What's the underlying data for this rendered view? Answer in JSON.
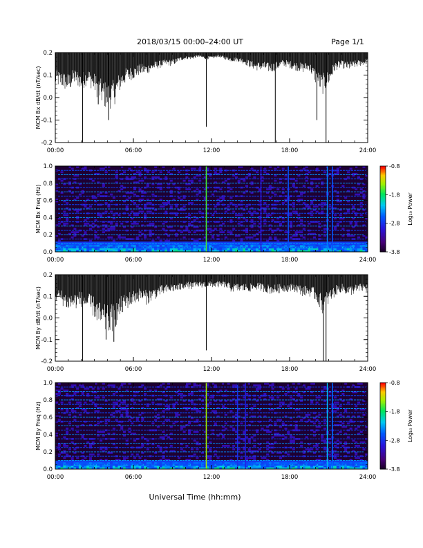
{
  "header": {
    "title": "2018/03/15  00:00–24:00 UT",
    "page": "Page 1/1"
  },
  "xlabel": "Universal Time (hh:mm)",
  "chart_data": [
    {
      "type": "line",
      "ylabel": "MCM Bx dB/dt (nT/sec)",
      "x_ticks": [
        "00:00",
        "06:00",
        "12:00",
        "18:00",
        "24:00"
      ],
      "y_ticks": [
        "0.2",
        "0.1",
        "0.0",
        "-0.1",
        "-0.2"
      ],
      "xlim": [
        0,
        24
      ],
      "ylim": [
        -0.2,
        0.2
      ],
      "x_unit": "hours UT",
      "series": [
        {
          "x": [
            0,
            0.5,
            1,
            1.5,
            2,
            2.5,
            3,
            3.5,
            4,
            4.5,
            5,
            5.5,
            6,
            6.5,
            7,
            7.5,
            8,
            8.5,
            9,
            9.5,
            10,
            10.5,
            11,
            11.5,
            12,
            12.5,
            13,
            13.5,
            14,
            14.5,
            15,
            15.5,
            16,
            16.5,
            17,
            17.5,
            18,
            18.5,
            19,
            19.5,
            20,
            20.5,
            21,
            21.5,
            22,
            22.5,
            23,
            23.5,
            24
          ],
          "upper": [
            0.2,
            0.2,
            0.2,
            0.2,
            0.2,
            0.2,
            0.2,
            0.2,
            0.2,
            0.2,
            0.2,
            0.2,
            0.2,
            0.2,
            0.2,
            0.2,
            0.2,
            0.2,
            0.2,
            0.2,
            0.2,
            0.2,
            0.2,
            0.2,
            0.2,
            0.2,
            0.2,
            0.2,
            0.2,
            0.2,
            0.2,
            0.2,
            0.2,
            0.2,
            0.2,
            0.2,
            0.2,
            0.2,
            0.2,
            0.2,
            0.2,
            0.2,
            0.2,
            0.2,
            0.2,
            0.2,
            0.2,
            0.2,
            0.2
          ],
          "lower": [
            0.05,
            0.04,
            0.02,
            0.06,
            0.03,
            0.06,
            0.02,
            -0.03,
            -0.06,
            -0.04,
            0.03,
            0.07,
            0.08,
            0.1,
            0.1,
            0.12,
            0.13,
            0.14,
            0.14,
            0.16,
            0.17,
            0.17,
            0.18,
            0.17,
            0.17,
            0.18,
            0.17,
            0.16,
            0.16,
            0.15,
            0.13,
            0.12,
            0.12,
            0.11,
            0.12,
            0.14,
            0.13,
            0.12,
            0.11,
            0.12,
            0.06,
            0.01,
            0.05,
            0.12,
            0.13,
            0.12,
            0.13,
            0.14,
            0.15
          ]
        }
      ],
      "spikes": [
        {
          "x": 2.1,
          "y": -0.2
        },
        {
          "x": 3.3,
          "y": -0.03
        },
        {
          "x": 4.1,
          "y": -0.1
        },
        {
          "x": 11.6,
          "y": -0.13
        },
        {
          "x": 16.9,
          "y": -0.2
        },
        {
          "x": 20.8,
          "y": -0.2
        },
        {
          "x": 20.1,
          "y": -0.1
        }
      ]
    },
    {
      "type": "heatmap",
      "ylabel": "MCM Bx Freq (Hz)",
      "x_ticks": [
        "00:00",
        "06:00",
        "12:00",
        "18:00",
        "24:00"
      ],
      "y_ticks": [
        "1.0",
        "0.8",
        "0.6",
        "0.4",
        "0.2",
        "0.0"
      ],
      "xlim": [
        0,
        24
      ],
      "ylim": [
        0,
        1.0
      ],
      "colorbar": {
        "label": "Log₁₀ Power",
        "ticks": [
          "-0.8",
          "-1.8",
          "-2.8",
          "-3.8"
        ],
        "range": [
          -3.8,
          -0.8
        ]
      },
      "harmonics_hz": [
        0.05,
        0.1,
        0.15,
        0.2,
        0.25,
        0.3,
        0.35,
        0.4,
        0.45,
        0.5,
        0.55,
        0.6,
        0.65,
        0.7,
        0.75,
        0.8,
        0.85,
        0.9,
        0.95,
        1.0
      ],
      "vertical_lines": [
        {
          "x": 11.6,
          "power": -1.6
        },
        {
          "x": 17.9,
          "power": -2.6
        },
        {
          "x": 20.9,
          "power": -2.4
        },
        {
          "x": 21.3,
          "power": -2.6
        },
        {
          "x": 15.8,
          "power": -3.0
        }
      ],
      "low_freq_band_hz": 0.12
    },
    {
      "type": "line",
      "ylabel": "MCM By dB/dt (nT/sec)",
      "x_ticks": [
        "00:00",
        "06:00",
        "12:00",
        "18:00",
        "24:00"
      ],
      "y_ticks": [
        "0.2",
        "0.1",
        "0.0",
        "-0.1",
        "-0.2"
      ],
      "xlim": [
        0,
        24
      ],
      "ylim": [
        -0.2,
        0.2
      ],
      "x_unit": "hours UT",
      "series": [
        {
          "x": [
            0,
            0.5,
            1,
            1.5,
            2,
            2.5,
            3,
            3.5,
            4,
            4.5,
            5,
            5.5,
            6,
            6.5,
            7,
            7.5,
            8,
            8.5,
            9,
            9.5,
            10,
            10.5,
            11,
            11.5,
            12,
            12.5,
            13,
            13.5,
            14,
            14.5,
            15,
            15.5,
            16,
            16.5,
            17,
            17.5,
            18,
            18.5,
            19,
            19.5,
            20,
            20.5,
            21,
            21.5,
            22,
            22.5,
            23,
            23.5,
            24
          ],
          "upper": [
            0.2,
            0.2,
            0.2,
            0.2,
            0.2,
            0.2,
            0.2,
            0.2,
            0.2,
            0.2,
            0.2,
            0.2,
            0.2,
            0.2,
            0.2,
            0.2,
            0.2,
            0.2,
            0.2,
            0.2,
            0.2,
            0.2,
            0.2,
            0.2,
            0.2,
            0.2,
            0.2,
            0.2,
            0.2,
            0.2,
            0.2,
            0.2,
            0.2,
            0.2,
            0.2,
            0.2,
            0.2,
            0.2,
            0.2,
            0.2,
            0.2,
            0.2,
            0.2,
            0.2,
            0.2,
            0.2,
            0.2,
            0.2,
            0.2
          ],
          "lower": [
            0.08,
            0.06,
            0.03,
            0.04,
            0.05,
            0.03,
            0.0,
            -0.06,
            -0.08,
            -0.06,
            0.0,
            0.04,
            0.06,
            0.08,
            0.06,
            0.08,
            0.1,
            0.11,
            0.12,
            0.12,
            0.14,
            0.13,
            0.14,
            0.14,
            0.14,
            0.14,
            0.14,
            0.12,
            0.12,
            0.12,
            0.12,
            0.13,
            0.12,
            0.11,
            0.11,
            0.12,
            0.12,
            0.12,
            0.1,
            0.1,
            0.08,
            0.02,
            0.06,
            0.1,
            0.12,
            0.1,
            0.11,
            0.12,
            0.12
          ]
        }
      ],
      "spikes": [
        {
          "x": 2.1,
          "y": -0.2
        },
        {
          "x": 3.9,
          "y": -0.1
        },
        {
          "x": 4.5,
          "y": -0.11
        },
        {
          "x": 11.6,
          "y": -0.15
        },
        {
          "x": 20.6,
          "y": -0.2
        },
        {
          "x": 20.8,
          "y": -0.2
        }
      ]
    },
    {
      "type": "heatmap",
      "ylabel": "MCM By Freq (Hz)",
      "x_ticks": [
        "00:00",
        "06:00",
        "12:00",
        "18:00",
        "24:00"
      ],
      "y_ticks": [
        "1.0",
        "0.8",
        "0.6",
        "0.4",
        "0.2",
        "0.0"
      ],
      "xlim": [
        0,
        24
      ],
      "ylim": [
        0,
        1.0
      ],
      "colorbar": {
        "label": "Log₁₀ Power",
        "ticks": [
          "-0.8",
          "-1.8",
          "-2.8",
          "-3.8"
        ],
        "range": [
          -3.8,
          -0.8
        ]
      },
      "harmonics_hz": [
        0.05,
        0.1,
        0.15,
        0.2,
        0.25,
        0.3,
        0.35,
        0.4,
        0.45,
        0.5,
        0.55,
        0.6,
        0.65,
        0.7,
        0.75,
        0.8,
        0.85,
        0.9,
        0.95,
        1.0
      ],
      "vertical_lines": [
        {
          "x": 11.6,
          "power": -1.4
        },
        {
          "x": 14.0,
          "power": -2.8
        },
        {
          "x": 14.6,
          "power": -2.9
        },
        {
          "x": 20.9,
          "power": -2.2
        },
        {
          "x": 21.3,
          "power": -2.5
        }
      ],
      "low_freq_band_hz": 0.1
    }
  ]
}
